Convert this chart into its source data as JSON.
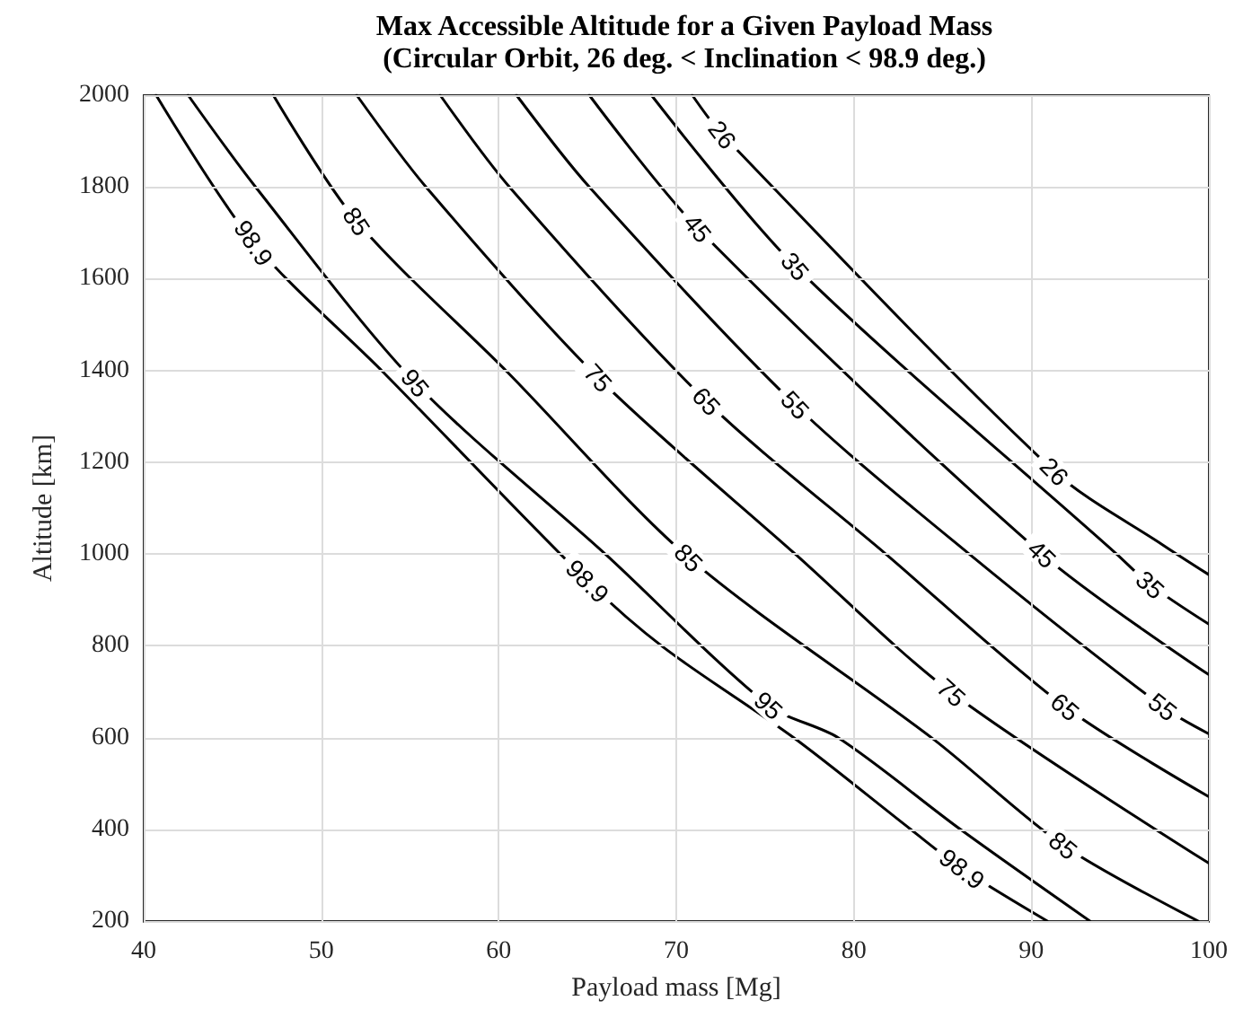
{
  "chart_data": {
    "type": "line",
    "title": "Max Accessible Altitude for a Given Payload Mass",
    "subtitle": "(Circular Orbit, 26 deg. < Inclination < 98.9 deg.)",
    "xlabel": "Payload mass [Mg]",
    "ylabel": "Altitude [km]",
    "xlim": [
      40,
      100
    ],
    "xticks": [
      40,
      50,
      60,
      70,
      80,
      90,
      100
    ],
    "ylim": [
      200,
      2000
    ],
    "yticks": [
      200,
      400,
      600,
      800,
      1000,
      1200,
      1400,
      1600,
      1800,
      2000
    ],
    "grid": true,
    "series": [
      {
        "color": "#000000",
        "x": [
          40.7,
          46.2,
          53.5,
          65.0,
          69.3,
          76.6,
          83.2,
          86.1,
          90.9
        ],
        "values": [
          2000,
          1678,
          1396,
          941,
          796,
          600,
          400,
          314,
          200
        ]
      },
      {
        "color": "#000000",
        "x": [
          42.5,
          46.3,
          55.3,
          66.0,
          75.2,
          79.1,
          86.0,
          93.3
        ],
        "values": [
          2000,
          1800,
          1373,
          1000,
          670,
          600,
          400,
          200
        ]
      },
      {
        "color": "#000000",
        "x": [
          47.3,
          52.0,
          60.5,
          70.7,
          84.5,
          91.8,
          99.4
        ],
        "values": [
          2000,
          1725,
          1396,
          992,
          596,
          365,
          200
        ]
      },
      {
        "color": "#000000",
        "x": [
          52.0,
          55.9,
          65.6,
          76.7,
          85.5,
          100
        ],
        "values": [
          2000,
          1800,
          1384,
          1000,
          698,
          326
        ]
      },
      {
        "color": "#000000",
        "x": [
          56.7,
          60.6,
          71.7,
          81.8,
          91.9,
          100
        ],
        "values": [
          2000,
          1800,
          1333,
          1000,
          667,
          471
        ]
      },
      {
        "color": "#000000",
        "x": [
          61.0,
          65.1,
          76.7,
          86.5,
          97.4,
          100
        ],
        "values": [
          2000,
          1800,
          1325,
          1000,
          667,
          608
        ]
      },
      {
        "color": "#000000",
        "x": [
          65.1,
          71.2,
          90.6,
          100
        ],
        "values": [
          2000,
          1710,
          1000,
          737
        ]
      },
      {
        "color": "#000000",
        "x": [
          68.6,
          76.7,
          94.8,
          96.7,
          100
        ],
        "values": [
          2000,
          1627,
          1000,
          933,
          847
        ]
      },
      {
        "color": "#000000",
        "x": [
          70.9,
          72.6,
          91.3,
          97.4,
          100
        ],
        "values": [
          2000,
          1914,
          1180,
          1020,
          955
        ]
      }
    ],
    "annotations": [
      {
        "text": "98.9",
        "x": 46.2,
        "y": 1678
      },
      {
        "text": "98.9",
        "x": 65.0,
        "y": 941
      },
      {
        "text": "98.9",
        "x": 86.1,
        "y": 314
      },
      {
        "text": "95",
        "x": 55.3,
        "y": 1373
      },
      {
        "text": "95",
        "x": 75.2,
        "y": 670
      },
      {
        "text": "85",
        "x": 52.0,
        "y": 1725
      },
      {
        "text": "85",
        "x": 70.7,
        "y": 992
      },
      {
        "text": "85",
        "x": 91.8,
        "y": 365
      },
      {
        "text": "75",
        "x": 65.6,
        "y": 1384
      },
      {
        "text": "75",
        "x": 85.5,
        "y": 698
      },
      {
        "text": "65",
        "x": 71.7,
        "y": 1333
      },
      {
        "text": "65",
        "x": 91.9,
        "y": 667
      },
      {
        "text": "55",
        "x": 76.7,
        "y": 1325
      },
      {
        "text": "55",
        "x": 97.4,
        "y": 667
      },
      {
        "text": "45",
        "x": 71.2,
        "y": 1710
      },
      {
        "text": "45",
        "x": 90.6,
        "y": 1000
      },
      {
        "text": "35",
        "x": 76.7,
        "y": 1627
      },
      {
        "text": "35",
        "x": 96.7,
        "y": 933
      },
      {
        "text": "26",
        "x": 72.6,
        "y": 1914
      },
      {
        "text": "26",
        "x": 91.3,
        "y": 1180
      }
    ]
  }
}
